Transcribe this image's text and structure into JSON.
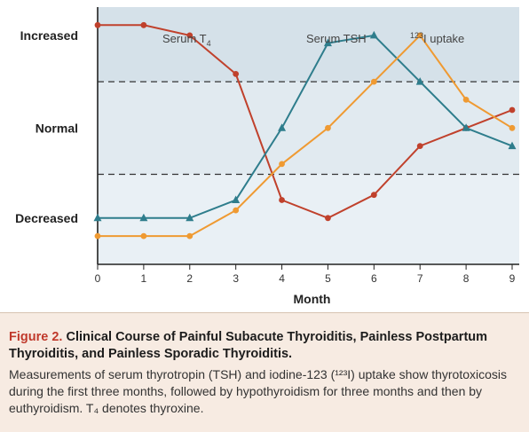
{
  "chart_data": {
    "type": "line",
    "xlabel": "Month",
    "x": [
      0,
      1,
      2,
      3,
      4,
      5,
      6,
      7,
      8,
      9
    ],
    "xlim": [
      0,
      9
    ],
    "ylim": [
      0,
      1
    ],
    "y_categories": [
      "Decreased",
      "Normal",
      "Increased"
    ],
    "normal_band": [
      0.35,
      0.71
    ],
    "grid": false,
    "series": [
      {
        "name": "Serum T4",
        "label_main": "Serum T",
        "label_sub": "4",
        "label_sup": "",
        "color": "#c0412c",
        "marker": "circle",
        "values": [
          0.93,
          0.93,
          0.89,
          0.74,
          0.25,
          0.18,
          0.27,
          0.46,
          0.53,
          0.6
        ]
      },
      {
        "name": "Serum TSH",
        "label_main": "Serum TSH",
        "label_sub": "",
        "label_sup": "",
        "color": "#2e7d8c",
        "marker": "triangle",
        "values": [
          0.18,
          0.18,
          0.18,
          0.25,
          0.53,
          0.86,
          0.89,
          0.71,
          0.53,
          0.46
        ]
      },
      {
        "name": "123I uptake",
        "label_main": "I uptake",
        "label_sub": "",
        "label_sup": "123",
        "color": "#ef9a32",
        "marker": "circle",
        "values": [
          0.11,
          0.11,
          0.11,
          0.21,
          0.39,
          0.53,
          0.71,
          0.89,
          0.64,
          0.53
        ]
      }
    ]
  },
  "caption": {
    "figure_label": "Figure 2.",
    "title": "Clinical Course of Painful Subacute Thyroiditis, Painless Postpartum Thyroiditis, and Painless Sporadic Thyroiditis.",
    "body": "Measurements of serum thyrotropin (TSH) and iodine-123 (¹²³I) uptake show thyrotoxicosis during the first three months, followed by hypothyroidism for three months and then by euthyroidism. T₄ denotes thyroxine."
  }
}
